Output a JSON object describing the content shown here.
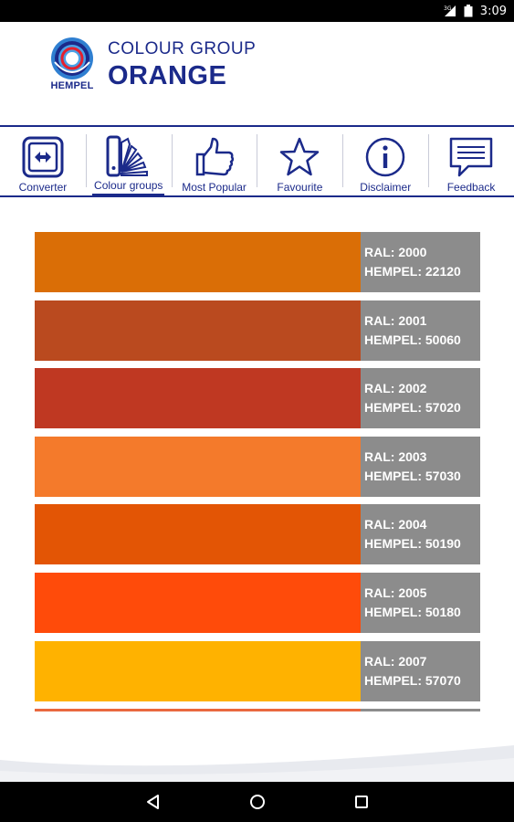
{
  "status_bar": {
    "time": "3:09",
    "network": "3G"
  },
  "header": {
    "logo_text": "HEMPEL",
    "subtitle": "COLOUR GROUP",
    "title": "ORANGE"
  },
  "toolbar": {
    "active": "colour-groups",
    "items": [
      {
        "id": "converter",
        "label": "Converter",
        "icon": "converter-icon"
      },
      {
        "id": "colour-groups",
        "label": "Colour groups",
        "icon": "colour-fan-icon"
      },
      {
        "id": "most-popular",
        "label": "Most Popular",
        "icon": "thumbs-up-icon"
      },
      {
        "id": "favourite",
        "label": "Favourite",
        "icon": "star-icon"
      },
      {
        "id": "disclaimer",
        "label": "Disclaimer",
        "icon": "info-icon"
      },
      {
        "id": "feedback",
        "label": "Feedback",
        "icon": "speech-bubble-icon"
      }
    ]
  },
  "colours": [
    {
      "ral": "RAL: 2000",
      "hempel": "HEMPEL: 22120",
      "color": "#DA6E06"
    },
    {
      "ral": "RAL: 2001",
      "hempel": "HEMPEL: 50060",
      "color": "#BA4A1F"
    },
    {
      "ral": "RAL: 2002",
      "hempel": "HEMPEL: 57020",
      "color": "#BF3822"
    },
    {
      "ral": "RAL: 2003",
      "hempel": "HEMPEL: 57030",
      "color": "#F47A2B"
    },
    {
      "ral": "RAL: 2004",
      "hempel": "HEMPEL: 50190",
      "color": "#E35505"
    },
    {
      "ral": "RAL: 2005",
      "hempel": "HEMPEL: 50180",
      "color": "#FF4B0A"
    },
    {
      "ral": "RAL: 2007",
      "hempel": "HEMPEL: 57070",
      "color": "#FFB200"
    }
  ],
  "partial_colour": {
    "color": "#E9683F"
  },
  "theme": {
    "brand_blue": "#1B2A8A",
    "info_panel": "#8C8C8C"
  },
  "nav_bar": {
    "buttons": [
      "back-icon",
      "home-icon",
      "recents-icon"
    ]
  }
}
